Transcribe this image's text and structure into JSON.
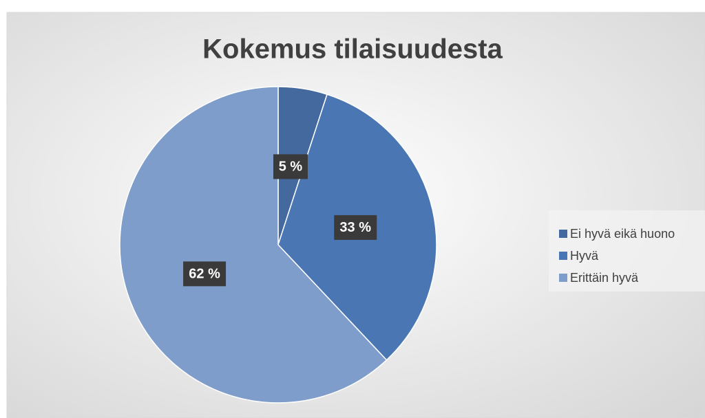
{
  "chart_data": {
    "type": "pie",
    "title": "Kokemus tilaisuudesta",
    "categories": [
      "Ei hyvä eikä huono",
      "Hyvä",
      "Erittäin hyvä"
    ],
    "values": [
      5,
      33,
      62
    ],
    "value_labels": [
      "5 %",
      "33 %",
      "62 %"
    ],
    "colors": [
      "#44699f",
      "#4a77b3",
      "#7f9dcb"
    ],
    "legend": "right"
  }
}
